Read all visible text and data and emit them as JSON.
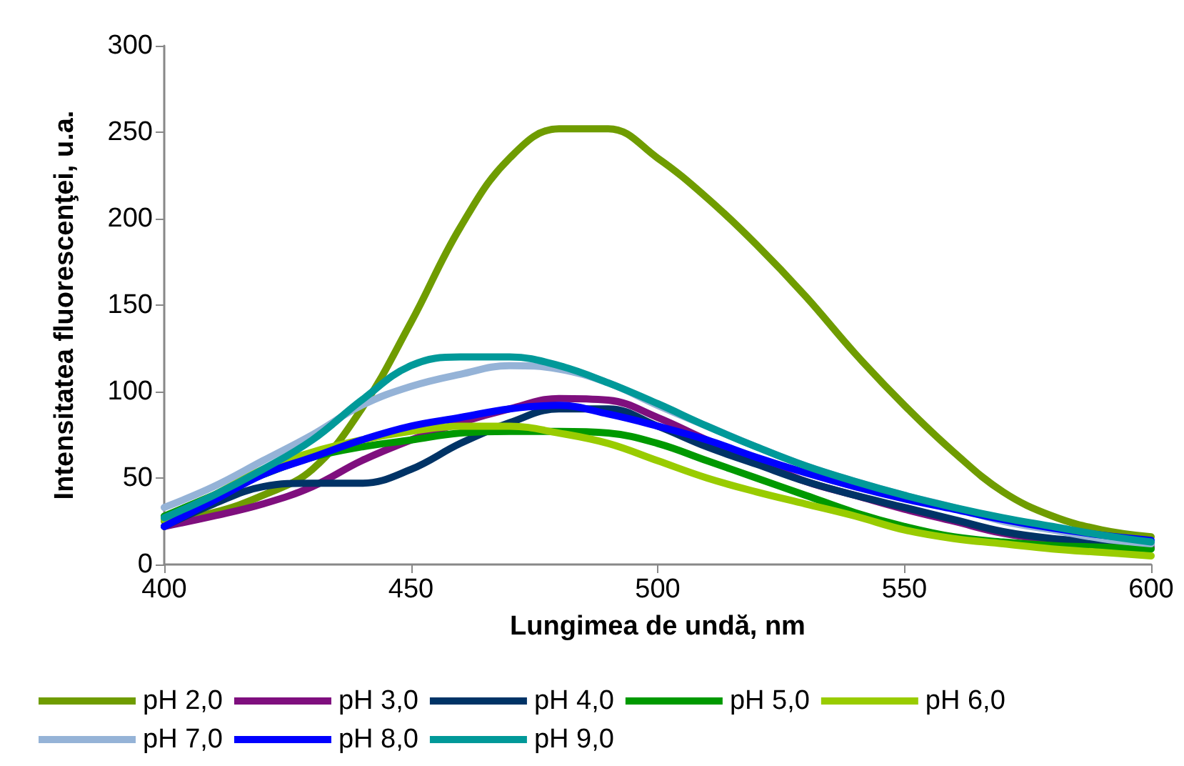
{
  "chart_data": {
    "type": "line",
    "xlabel": "Lungimea de undă, nm",
    "ylabel": "Intensitatea fluorescenţei, u.a.",
    "x": [
      400,
      410,
      420,
      430,
      440,
      450,
      460,
      470,
      480,
      490,
      500,
      510,
      520,
      530,
      540,
      550,
      560,
      570,
      580,
      590,
      600
    ],
    "xlim": [
      400,
      600
    ],
    "xticks": [
      400,
      450,
      500,
      550,
      600
    ],
    "ylim": [
      0,
      300
    ],
    "yticks": [
      0,
      50,
      100,
      150,
      200,
      250,
      300
    ],
    "grid": false,
    "legend": "bottom",
    "marker": "none",
    "line_style": "solid",
    "series": [
      {
        "name": "pH 2,0",
        "color": "#6f9c00",
        "values": [
          25,
          30,
          40,
          55,
          90,
          140,
          195,
          235,
          252,
          252,
          235,
          212,
          185,
          155,
          122,
          92,
          65,
          42,
          28,
          20,
          16
        ]
      },
      {
        "name": "pH 3,0",
        "color": "#7f0f7e",
        "values": [
          22,
          28,
          35,
          45,
          60,
          72,
          82,
          90,
          96,
          95,
          85,
          72,
          60,
          48,
          40,
          32,
          25,
          18,
          14,
          12,
          10
        ]
      },
      {
        "name": "pH 4,0",
        "color": "#003366",
        "values": [
          22,
          35,
          45,
          47,
          47,
          55,
          70,
          82,
          90,
          90,
          80,
          68,
          58,
          48,
          40,
          33,
          26,
          19,
          15,
          13,
          12
        ]
      },
      {
        "name": "pH 5,0",
        "color": "#009900",
        "values": [
          28,
          40,
          52,
          62,
          68,
          72,
          76,
          77,
          77,
          76,
          70,
          60,
          50,
          40,
          30,
          22,
          16,
          13,
          11,
          10,
          9
        ]
      },
      {
        "name": "pH 6,0",
        "color": "#99cc00",
        "values": [
          26,
          40,
          55,
          65,
          72,
          77,
          80,
          80,
          76,
          70,
          60,
          50,
          42,
          35,
          28,
          20,
          15,
          12,
          9,
          7,
          5
        ]
      },
      {
        "name": "pH 7,0",
        "color": "#95b3d7",
        "values": [
          33,
          45,
          60,
          75,
          92,
          103,
          110,
          115,
          113,
          105,
          92,
          80,
          68,
          57,
          48,
          40,
          33,
          25,
          20,
          15,
          12
        ]
      },
      {
        "name": "pH 8,0",
        "color": "#0000ff",
        "values": [
          22,
          37,
          52,
          62,
          72,
          80,
          85,
          90,
          92,
          87,
          80,
          72,
          62,
          53,
          45,
          38,
          32,
          26,
          21,
          17,
          14
        ]
      },
      {
        "name": "pH 9,0",
        "color": "#009999",
        "values": [
          27,
          40,
          55,
          72,
          95,
          115,
          120,
          120,
          115,
          105,
          93,
          80,
          68,
          57,
          48,
          40,
          33,
          27,
          22,
          17,
          13
        ]
      }
    ]
  }
}
